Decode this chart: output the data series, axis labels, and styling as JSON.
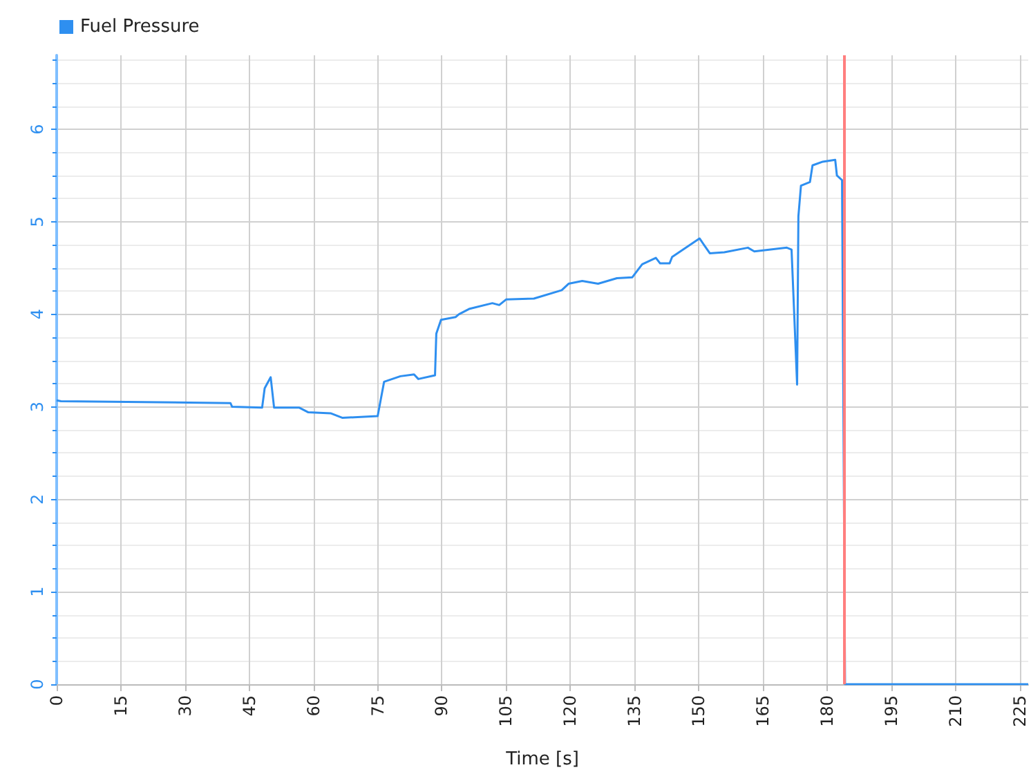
{
  "chart_data": {
    "type": "line",
    "xlabel": "Time [s]",
    "x": [
      0,
      1,
      40.6,
      41,
      48,
      48.6,
      50,
      50.8,
      56.7,
      58.8,
      64,
      66.8,
      75,
      76.5,
      80.3,
      83.5,
      84.5,
      88.4,
      88.7,
      89.8,
      93.2,
      94,
      96.5,
      101.8,
      103.4,
      105,
      111.5,
      118,
      119.6,
      122.8,
      126.5,
      130.9,
      134.5,
      136.8,
      140,
      141,
      143.2,
      143.8,
      150.2,
      152.6,
      156,
      161.5,
      163,
      170.6,
      171.7,
      173,
      173.3,
      173.9,
      176,
      176.6,
      179,
      181.9,
      182.3,
      183.5,
      184.2,
      227
    ],
    "series": [
      {
        "name": "Fuel Pressure",
        "color": "#2e8ff0",
        "values": [
          3.07,
          3.06,
          3.04,
          3.0,
          2.99,
          3.2,
          3.32,
          2.99,
          2.99,
          2.94,
          2.93,
          2.88,
          2.9,
          3.27,
          3.33,
          3.35,
          3.3,
          3.34,
          3.79,
          3.94,
          3.97,
          4.0,
          4.06,
          4.12,
          4.1,
          4.16,
          4.17,
          4.26,
          4.33,
          4.36,
          4.33,
          4.39,
          4.4,
          4.54,
          4.61,
          4.55,
          4.55,
          4.62,
          4.82,
          4.66,
          4.67,
          4.72,
          4.68,
          4.72,
          4.7,
          3.24,
          5.06,
          5.39,
          5.43,
          5.61,
          5.65,
          5.67,
          5.5,
          5.45,
          0,
          0
        ]
      }
    ],
    "xlim": [
      0,
      227
    ],
    "xticks": [
      0,
      15,
      30,
      45,
      60,
      75,
      90,
      105,
      120,
      135,
      150,
      165,
      180,
      195,
      210,
      225
    ],
    "ylim": [
      0,
      6.8
    ],
    "yticks": [
      0,
      1,
      2,
      3,
      4,
      5,
      6
    ],
    "ref_lines": [
      {
        "axis": "x",
        "value": 184,
        "color": "#ff7f7f"
      }
    ],
    "grid": true,
    "legend": "top left",
    "marker": "none",
    "line_style": "solid"
  }
}
